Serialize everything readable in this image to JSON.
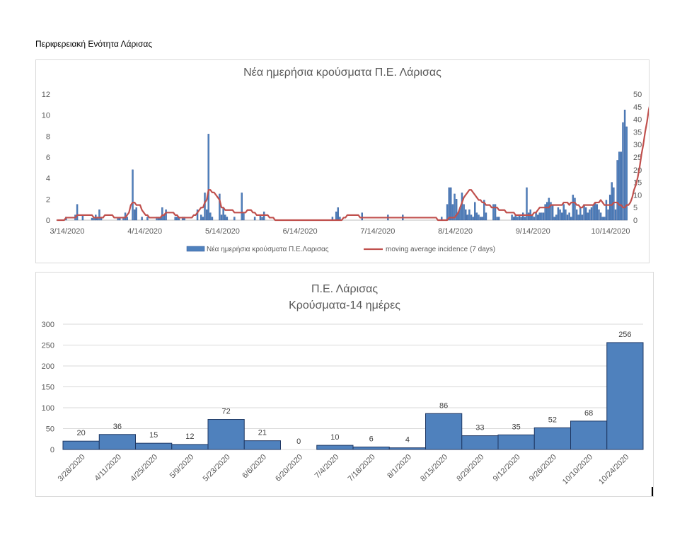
{
  "page_heading": "Περιφερειακή Ενότητα Λάρισας",
  "chart_data": [
    {
      "type": "bar",
      "title": "Νέα ημερήσια κρούσματα Π.Ε. Λάρισας",
      "ylim_left": [
        0,
        12
      ],
      "ylim_right": [
        0,
        50
      ],
      "yticks_left": [
        "0",
        "2",
        "4",
        "6",
        "8",
        "10",
        "12"
      ],
      "yticks_right": [
        "0",
        "5",
        "10",
        "15",
        "20",
        "25",
        "30",
        "35",
        "40",
        "45",
        "50"
      ],
      "x_ticks": [
        "3/14/2020",
        "4/14/2020",
        "5/14/2020",
        "6/14/2020",
        "7/14/2020",
        "8/14/2020",
        "9/14/2020",
        "10/14/2020"
      ],
      "legend": "bottom",
      "grid": false,
      "colors": {
        "bars": "#4f81bd",
        "line": "#c0504d"
      },
      "series": [
        {
          "name": "Νέα ημερήσια κρούσματα Π.Ε.Λαρισας",
          "axis": "left",
          "values": [
            0,
            0,
            0,
            0,
            0,
            0.3,
            0,
            0,
            0,
            0,
            0.5,
            1.5,
            0,
            0,
            0.5,
            0,
            0,
            0,
            0,
            0.2,
            0.2,
            0.5,
            0.3,
            1,
            0.3,
            0,
            0,
            0,
            0,
            0,
            0,
            0,
            0,
            0.2,
            0.2,
            0,
            0.3,
            0.7,
            0.3,
            0,
            0,
            4.8,
            1,
            1.2,
            0,
            0,
            0.3,
            0,
            0,
            0.3,
            0,
            0,
            0,
            0,
            0.3,
            0.3,
            0.3,
            1.2,
            0.5,
            1,
            0,
            0,
            0,
            0,
            0.3,
            0.3,
            0.3,
            0,
            0.3,
            0.3,
            0,
            0,
            0,
            0,
            0,
            0,
            1,
            0,
            0.5,
            0.3,
            2.6,
            1,
            8.2,
            0.7,
            0.3,
            0,
            0,
            0,
            2.5,
            0.5,
            1.2,
            0.5,
            0.3,
            0,
            0,
            0,
            0.3,
            0,
            0,
            0,
            2.6,
            0.7,
            0,
            0,
            0,
            0,
            0,
            0.3,
            0,
            0,
            0.5,
            0.3,
            0.8,
            0,
            0,
            0,
            0,
            0,
            0,
            0,
            0,
            0,
            0,
            0,
            0,
            0,
            0,
            0,
            0,
            0,
            0,
            0,
            0,
            0,
            0,
            0,
            0,
            0,
            0,
            0,
            0,
            0,
            0,
            0,
            0,
            0,
            0,
            0,
            0,
            0.3,
            0,
            0.8,
            1.2,
            0.3,
            0,
            0,
            0,
            0,
            0,
            0,
            0,
            0,
            0,
            0,
            0,
            0.7,
            0,
            0,
            0,
            0,
            0,
            0,
            0,
            0,
            0,
            0,
            0,
            0,
            0,
            0.5,
            0,
            0,
            0,
            0,
            0,
            0,
            0,
            0.5,
            0,
            0,
            0,
            0,
            0,
            0,
            0,
            0,
            0,
            0,
            0,
            0,
            0,
            0,
            0,
            0,
            0,
            0,
            0,
            0,
            0.3,
            0,
            0,
            1.5,
            3.1,
            3.1,
            1.5,
            2.5,
            2,
            0.7,
            1.2,
            2.6,
            1.5,
            1,
            0.5,
            1,
            0.5,
            0.3,
            1.7,
            0.7,
            0.5,
            0.3,
            0.3,
            1.9,
            0.7,
            0,
            0,
            0,
            1.5,
            1.5,
            0.3,
            0.3,
            0,
            0,
            0,
            0,
            0,
            0,
            0.5,
            0.3,
            0.5,
            0.3,
            0.5,
            0.3,
            0.7,
            0.3,
            3.1,
            0.7,
            1,
            0.5,
            0.3,
            0.7,
            0.5,
            0.7,
            0.7,
            0.7,
            1.5,
            1.7,
            2.1,
            1.7,
            1.5,
            0.3,
            0.5,
            1.2,
            1,
            0.7,
            1.5,
            1,
            0.5,
            0.7,
            0.3,
            2.4,
            2.1,
            1,
            0.5,
            1.2,
            0.5,
            1.5,
            1.2,
            0.7,
            1,
            1.2,
            1.5,
            1.7,
            1.5,
            1,
            0.7,
            0.3,
            0.3,
            1.9,
            1,
            2.4,
            3.6,
            3.1,
            1,
            5.7,
            6.5,
            6.5,
            9.3,
            10.5,
            8.9
          ]
        },
        {
          "name": "moving average incidence (7 days)",
          "axis": "right",
          "values": [
            0,
            0,
            0,
            0,
            0,
            1,
            1,
            1,
            1,
            1,
            1,
            2,
            2,
            2,
            2,
            2,
            2,
            2,
            2,
            2,
            1,
            1,
            1,
            1,
            1,
            1,
            2,
            2,
            2,
            2,
            2,
            1,
            1,
            1,
            1,
            1,
            1,
            1,
            2,
            3,
            6,
            7,
            7,
            6,
            6,
            6,
            4,
            3,
            2,
            2,
            1,
            1,
            1,
            1,
            1,
            1,
            1,
            2,
            2,
            3,
            3,
            3,
            3,
            3,
            2,
            2,
            1,
            1,
            1,
            1,
            1,
            1,
            1,
            1,
            2,
            2,
            3,
            4,
            5,
            5,
            7,
            8,
            12,
            12,
            11,
            11,
            10,
            9,
            8,
            5,
            5,
            4,
            4,
            4,
            4,
            4,
            3,
            3,
            3,
            3,
            3,
            3,
            3,
            4,
            4,
            4,
            3,
            3,
            2,
            2,
            2,
            2,
            2,
            2,
            2,
            1,
            1,
            1,
            0,
            0,
            0,
            0,
            0,
            0,
            0,
            0,
            0,
            0,
            0,
            0,
            0,
            0,
            0,
            0,
            0,
            0,
            0,
            0,
            0,
            0,
            0,
            0,
            0,
            0,
            0,
            0,
            0,
            0,
            0,
            0,
            0,
            0,
            0,
            0,
            0,
            1,
            1,
            2,
            2,
            2,
            2,
            2,
            2,
            2,
            1,
            1,
            1,
            1,
            1,
            1,
            1,
            1,
            1,
            1,
            1,
            1,
            1,
            1,
            1,
            1,
            1,
            1,
            1,
            1,
            1,
            1,
            1,
            1,
            1,
            1,
            1,
            1,
            1,
            1,
            1,
            1,
            1,
            1,
            1,
            1,
            1,
            1,
            1,
            1,
            1,
            1,
            0,
            0,
            0,
            0,
            0,
            0,
            1,
            1,
            1,
            1,
            2,
            3,
            5,
            7,
            9,
            10,
            11,
            12,
            12,
            11,
            10,
            9,
            8,
            8,
            7,
            7,
            6,
            6,
            6,
            5,
            5,
            5,
            5,
            4,
            4,
            4,
            4,
            3,
            3,
            3,
            3,
            3,
            2,
            2,
            2,
            2,
            2,
            2,
            2,
            2,
            2,
            2,
            3,
            3,
            4,
            5,
            5,
            5,
            5,
            5,
            5,
            6,
            6,
            6,
            6,
            6,
            6,
            6,
            7,
            7,
            7,
            6,
            7,
            7,
            7,
            6,
            6,
            5,
            5,
            6,
            6,
            6,
            6,
            6,
            6,
            7,
            7,
            7,
            8,
            7,
            6,
            6,
            6,
            6,
            6,
            7,
            7,
            7,
            6,
            6,
            5,
            5,
            6,
            6,
            7,
            9,
            12,
            14,
            17,
            21,
            26,
            30,
            35,
            39,
            44,
            47
          ]
        }
      ]
    },
    {
      "type": "bar",
      "title": "Π.Ε. Λάρισας",
      "subtitle": "Κρούσματα-14 ημέρες",
      "ylim": [
        0,
        300
      ],
      "yticks": [
        "0",
        "50",
        "100",
        "150",
        "200",
        "250",
        "300"
      ],
      "grid": true,
      "colors": {
        "bars": "#4f81bd",
        "bar_stroke": "#1f3864",
        "grid": "#d9d9d9"
      },
      "categories": [
        "3/28/2020",
        "4/11/2020",
        "4/25/2020",
        "5/9/2020",
        "5/23/2020",
        "6/6/2020",
        "6/20/2020",
        "7/4/2020",
        "7/18/2020",
        "8/1/2020",
        "8/15/2020",
        "8/29/2020",
        "9/12/2020",
        "9/26/2020",
        "10/10/2020",
        "10/24/2020"
      ],
      "values": [
        20,
        36,
        15,
        12,
        72,
        21,
        0,
        10,
        6,
        4,
        86,
        33,
        35,
        52,
        68,
        256
      ]
    }
  ]
}
